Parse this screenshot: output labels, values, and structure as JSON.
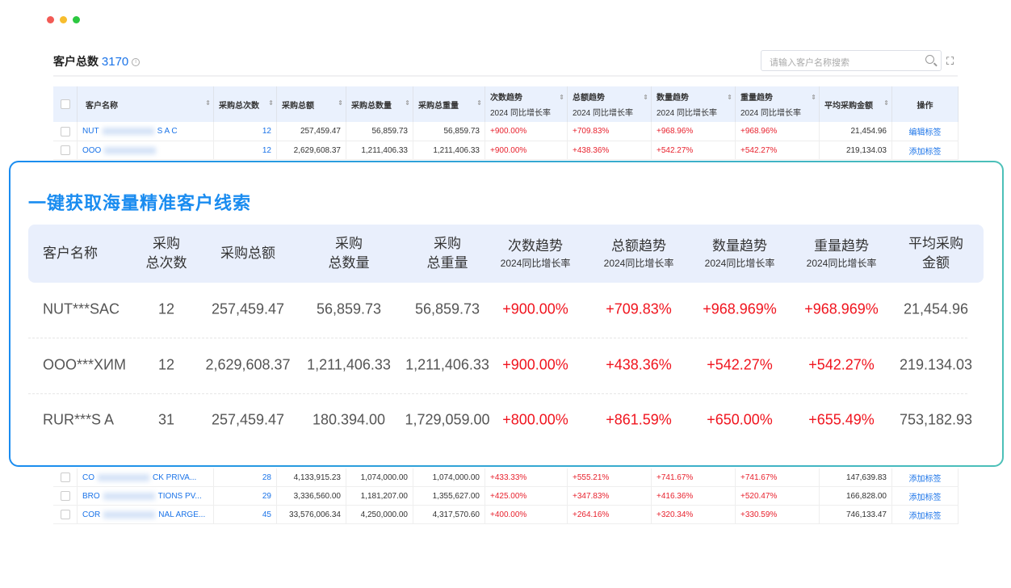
{
  "window": {
    "controls": [
      "close",
      "minimize",
      "maximize"
    ],
    "colors": [
      "#f25a55",
      "#f7bd2e",
      "#2bc840"
    ]
  },
  "header": {
    "title": "客户总数",
    "count": "3170",
    "info_icon": "info-icon",
    "search_placeholder": "请输入客户名称搜索",
    "search_icon": "search-icon",
    "expand_icon": "fullscreen-icon"
  },
  "table": {
    "columns": [
      "客户名称",
      "采购总次数",
      "采购总额",
      "采购总数量",
      "采购总重量",
      "次数趋势",
      "总额趋势",
      "数量趋势",
      "重量趋势",
      "平均采购金额",
      "操作"
    ],
    "trend_sub": "2024 同比增长率",
    "rows_top": [
      {
        "name_start": "NUT",
        "name_end": "S A C",
        "count": "12",
        "amount": "257,459.47",
        "qty": "56,859.73",
        "weight": "56,859.73",
        "t1": "+900.00%",
        "t2": "+709.83%",
        "t3": "+968.96%",
        "t4": "+968.96%",
        "avg": "21,454.96",
        "action": "编辑标签"
      },
      {
        "name_start": "OOO",
        "name_end": "",
        "count": "12",
        "amount": "2,629,608.37",
        "qty": "1,211,406.33",
        "weight": "1,211,406.33",
        "t1": "+900.00%",
        "t2": "+438.36%",
        "t3": "+542.27%",
        "t4": "+542.27%",
        "avg": "219,134.03",
        "action": "添加标签"
      }
    ],
    "rows_bottom": [
      {
        "name_start": "CO",
        "name_end": "CK PRIVA...",
        "count": "28",
        "amount": "4,133,915.23",
        "qty": "1,074,000.00",
        "weight": "1,074,000.00",
        "t1": "+433.33%",
        "t2": "+555.21%",
        "t3": "+741.67%",
        "t4": "+741.67%",
        "avg": "147,639.83",
        "action": "添加标签"
      },
      {
        "name_start": "BRO",
        "name_end": "TIONS PV...",
        "count": "29",
        "amount": "3,336,560.00",
        "qty": "1,181,207.00",
        "weight": "1,355,627.00",
        "t1": "+425.00%",
        "t2": "+347.83%",
        "t3": "+416.36%",
        "t4": "+520.47%",
        "avg": "166,828.00",
        "action": "添加标签"
      },
      {
        "name_start": "COR",
        "name_end": "NAL ARGE...",
        "count": "45",
        "amount": "33,576,006.34",
        "qty": "4,250,000.00",
        "weight": "4,317,570.60",
        "t1": "+400.00%",
        "t2": "+264.16%",
        "t3": "+320.34%",
        "t4": "+330.59%",
        "avg": "746,133.47",
        "action": "添加标签"
      }
    ]
  },
  "card": {
    "title": "一键获取海量精准客户线索",
    "headers": [
      {
        "l1": "客户名称",
        "l2": ""
      },
      {
        "l1": "采购",
        "l2": "总次数"
      },
      {
        "l1": "采购总额",
        "l2": ""
      },
      {
        "l1": "采购",
        "l2": "总数量"
      },
      {
        "l1": "采购",
        "l2": "总重量"
      },
      {
        "l1": "次数趋势",
        "sub": "2024同比增长率"
      },
      {
        "l1": "总额趋势",
        "sub": "2024同比增长率"
      },
      {
        "l1": "数量趋势",
        "sub": "2024同比增长率"
      },
      {
        "l1": "重量趋势",
        "sub": "2024同比增长率"
      },
      {
        "l1": "平均采购",
        "l2": "金额"
      }
    ],
    "rows": [
      [
        "NUT***SAC",
        "12",
        "257,459.47",
        "56,859.73",
        "56,859.73",
        "+900.00%",
        "+709.83%",
        "+968.969%",
        "+968.969%",
        "21,454.96"
      ],
      [
        "OOO***ХИМ",
        "12",
        "2,629,608.37",
        "1,211,406.33",
        "1,211,406.33",
        "+900.00%",
        "+438.36%",
        "+542.27%",
        "+542.27%",
        "219.134.03"
      ],
      [
        "RUR***S A",
        "31",
        "257,459.47",
        "180.394.00",
        "1,729,059.00",
        "+800.00%",
        "+861.59%",
        "+650.00%",
        "+655.49%",
        "753,182.93"
      ]
    ],
    "accent": "#1a8cf0",
    "positive_color": "#f0141e"
  }
}
